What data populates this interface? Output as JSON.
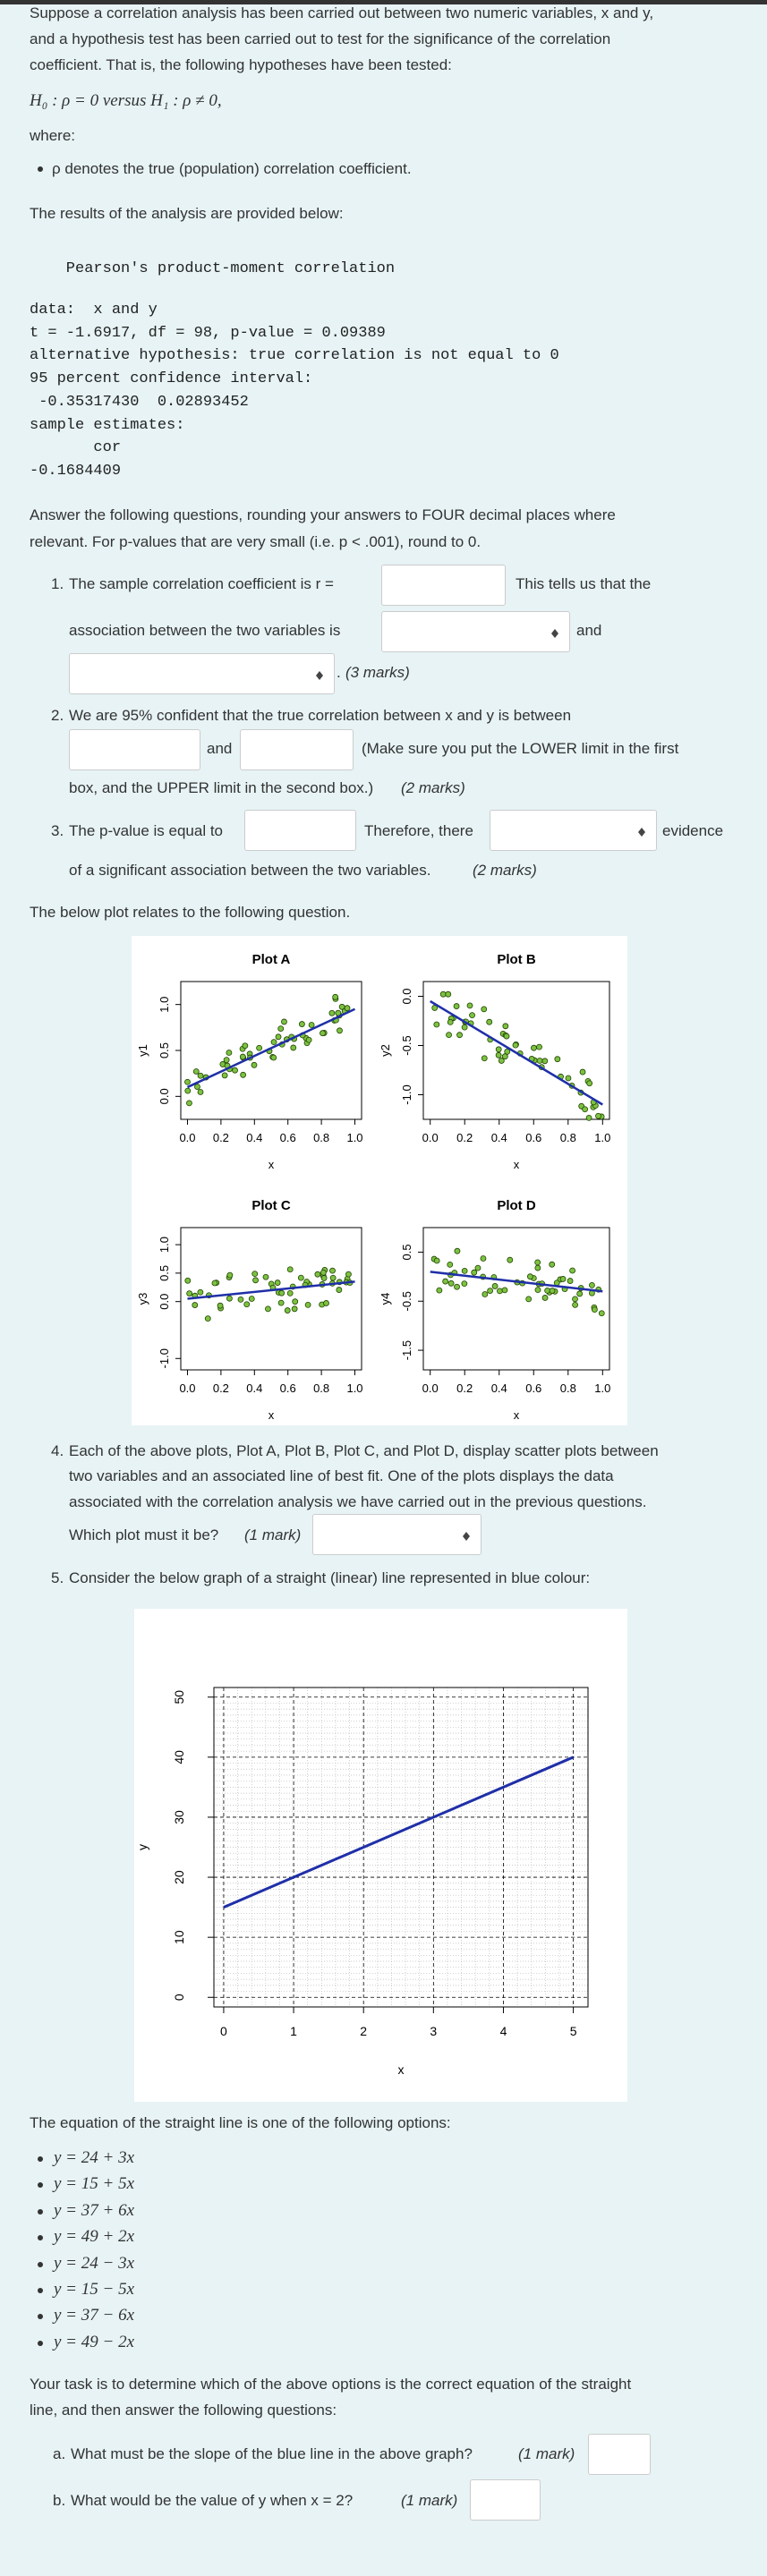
{
  "intro": [
    "Suppose a correlation analysis has been carried out between two numeric variables, x and y,",
    "and a hypothesis test has been carried out to test for the significance of the correlation",
    "coefficient. That is, the following hypotheses have been tested:"
  ],
  "hypotheses": "H₀ : ρ = 0 versus H₁ : ρ ≠ 0,",
  "where": "where:",
  "definition": "ρ denotes the true (population) correlation coefficient.",
  "results_intro": "The results of the analysis are provided below:",
  "output_title": "    Pearson's product-moment correlation",
  "output": [
    "data:  x and y",
    "t = -1.6917, df = 98, p-value = 0.09389",
    "alternative hypothesis: true correlation is not equal to 0",
    "95 percent confidence interval:",
    " -0.35317430  0.02893452",
    "sample estimates:",
    "       cor ",
    "-0.1684409"
  ],
  "instructions": [
    "Answer the following questions, rounding your answers to FOUR decimal places where",
    "relevant. For p-values that are very small (i.e. p < .001), round to 0."
  ],
  "q1": {
    "number": "1.",
    "text": "The sample correlation coefficient is r =",
    "after_input": "This tells us that the",
    "line2": "association between the two variables is",
    "after_select": "and",
    "end": ".",
    "marks": "(3 marks)"
  },
  "q2": {
    "number": "2.",
    "text": "We are 95% confident that the true correlation between x and y is between",
    "between": "and",
    "after": "(Make sure you put the LOWER limit in the first",
    "line3": "box, and the UPPER limit in the second box.)",
    "marks": "(2 marks)"
  },
  "q3": {
    "number": "3.",
    "text": "The p-value is equal to",
    "after_input": "Therefore, there",
    "after_select": "evidence",
    "line2": "of a significant association between the two variables.",
    "marks": "(2 marks)"
  },
  "plot_intro": "The below plot relates to the following question.",
  "plots": [
    {
      "title": "Plot A",
      "xlabel": "x",
      "ylabel": "y1",
      "xlim": [
        -0.04,
        1.04
      ],
      "ylim": [
        -0.25,
        1.25
      ],
      "xticks": [
        {
          "value": 0,
          "label": "0.0"
        },
        0.2,
        0.4,
        0.6,
        0.8,
        {
          "value": 1,
          "label": "1.0"
        }
      ],
      "yticks": [
        {
          "value": 0,
          "label": "0.0"
        },
        0.5,
        {
          "value": 1,
          "label": "1.0"
        }
      ],
      "fit_line": [
        0.1,
        0.95
      ]
    },
    {
      "title": "Plot B",
      "xlabel": "x",
      "ylabel": "y2",
      "xlim": [
        -0.04,
        1.04
      ],
      "ylim": [
        -1.25,
        0.15
      ],
      "xticks": [
        {
          "value": 0,
          "label": "0.0"
        },
        0.2,
        0.4,
        0.6,
        0.8,
        {
          "value": 1,
          "label": "1.0"
        }
      ],
      "yticks": [
        {
          "value": -1,
          "label": "-1.0"
        },
        -0.5,
        {
          "value": 0,
          "label": "0.0"
        }
      ],
      "fit_line": [
        -0.05,
        -1.1
      ]
    },
    {
      "title": "Plot C",
      "xlabel": "x",
      "ylabel": "y3",
      "xlim": [
        -0.04,
        1.04
      ],
      "ylim": [
        -1.2,
        1.3
      ],
      "xticks": [
        {
          "value": 0,
          "label": "0.0"
        },
        0.2,
        0.4,
        0.6,
        0.8,
        {
          "value": 1,
          "label": "1.0"
        }
      ],
      "yticks": [
        {
          "value": -1,
          "label": "-1.0"
        },
        {
          "value": 0,
          "label": "0.0"
        },
        0.5,
        {
          "value": 1,
          "label": "1.0"
        }
      ],
      "fit_line": [
        0.05,
        0.35
      ]
    },
    {
      "title": "Plot D",
      "xlabel": "x",
      "ylabel": "y4",
      "xlim": [
        -0.04,
        1.04
      ],
      "ylim": [
        -1.9,
        1.0
      ],
      "xticks": [
        {
          "value": 0,
          "label": "0.0"
        },
        0.2,
        0.4,
        0.6,
        0.8,
        {
          "value": 1,
          "label": "1.0"
        }
      ],
      "yticks": [
        -1.5,
        -0.5,
        0.5
      ],
      "fit_line": [
        0.1,
        -0.3
      ]
    }
  ],
  "q4": {
    "number": "4.",
    "lines": [
      "Each of the above plots, Plot A, Plot B, Plot C, and Plot D, display scatter plots between",
      "two variables and an associated line of best fit. One of the plots displays the data",
      "associated with the correlation analysis we have carried out in the previous questions."
    ],
    "question": "Which plot must it be?",
    "marks": "(1 mark)"
  },
  "q5": {
    "number": "5.",
    "text": "Consider the below graph of a straight (linear) line represented in blue colour:"
  },
  "line_graph": {
    "type": "line",
    "xlabel": "x",
    "ylabel": "y",
    "xlim": [
      -0.14,
      5.21
    ],
    "ylim": [
      -1.6,
      51.6
    ],
    "xticks": [
      0,
      1,
      2,
      3,
      4,
      5
    ],
    "yticks": [
      0,
      10,
      20,
      30,
      40,
      50
    ],
    "grid": true,
    "x": [
      0,
      5
    ],
    "values": [
      15,
      40
    ],
    "color": "#1f2fa8"
  },
  "options_intro": "The equation of the straight line is one of the following options:",
  "options": [
    "y = 24 + 3x",
    "y = 15 + 5x",
    "y = 37 + 6x",
    "y = 49 + 2x",
    "y = 24 − 3x",
    "y = 15 − 5x",
    "y = 37 − 6x",
    "y = 49 − 2x"
  ],
  "task": [
    "Your task is to determine which of the above options is the correct equation of the straight",
    "line, and then answer the following questions:"
  ],
  "qa": {
    "label": "a.",
    "text": "What must be the slope of the blue line in the above graph?",
    "marks": "(1 mark)"
  },
  "qb": {
    "label": "b.",
    "text": "What would be the value of y when x = 2?",
    "marks": "(1 mark)"
  }
}
